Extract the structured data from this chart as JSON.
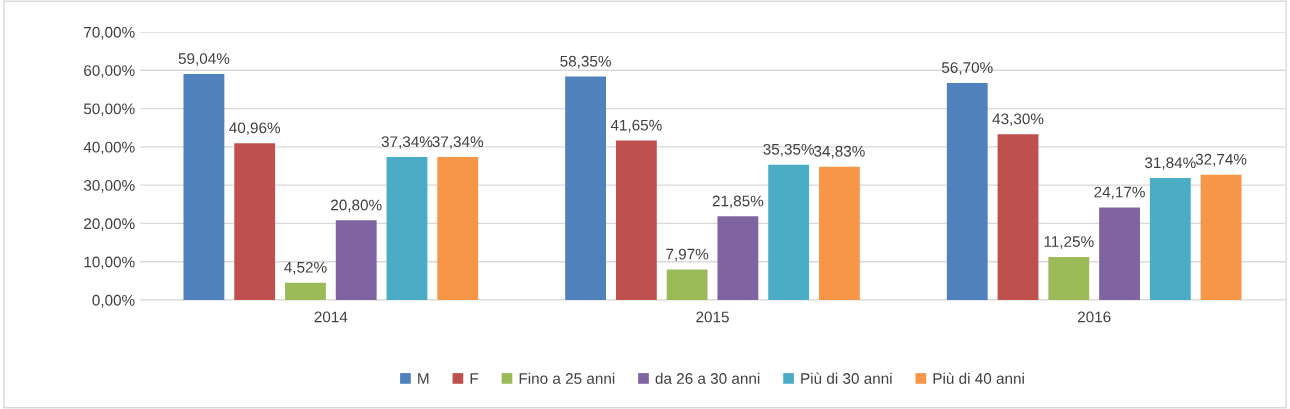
{
  "chart_data": {
    "type": "bar",
    "categories": [
      "2014",
      "2015",
      "2016"
    ],
    "series": [
      {
        "name": "M",
        "color": "#4f81bd",
        "values": [
          59.04,
          58.35,
          56.7
        ],
        "value_labels": [
          "59,04%",
          "58,35%",
          "56,70%"
        ]
      },
      {
        "name": "F",
        "color": "#c0504d",
        "values": [
          40.96,
          41.65,
          43.3
        ],
        "value_labels": [
          "40,96%",
          "41,65%",
          "43,30%"
        ]
      },
      {
        "name": "Fino a 25 anni",
        "color": "#9bbb59",
        "values": [
          4.52,
          7.97,
          11.25
        ],
        "value_labels": [
          "4,52%",
          "7,97%",
          "11,25%"
        ]
      },
      {
        "name": "da 26 a 30 anni",
        "color": "#8064a2",
        "values": [
          20.8,
          21.85,
          24.17
        ],
        "value_labels": [
          "20,80%",
          "21,85%",
          "24,17%"
        ]
      },
      {
        "name": "Più di 30 anni",
        "color": "#4bacc6",
        "values": [
          37.34,
          35.35,
          31.84
        ],
        "value_labels": [
          "37,34%",
          "35,35%",
          "31,84%"
        ]
      },
      {
        "name": "Più di 40 anni",
        "color": "#f79646",
        "values": [
          37.34,
          34.83,
          32.74
        ],
        "value_labels": [
          "37,34%",
          "34,83%",
          "32,74%"
        ]
      }
    ],
    "ylim": [
      0,
      70
    ],
    "yticks": [
      {
        "value": 0,
        "label": "0,00%"
      },
      {
        "value": 10,
        "label": "10,00%"
      },
      {
        "value": 20,
        "label": "20,00%"
      },
      {
        "value": 30,
        "label": "30,00%"
      },
      {
        "value": 40,
        "label": "40,00%"
      },
      {
        "value": 50,
        "label": "50,00%"
      },
      {
        "value": 60,
        "label": "60,00%"
      },
      {
        "value": 70,
        "label": "70,00%"
      }
    ],
    "grid": "y",
    "legend": "bottom"
  }
}
